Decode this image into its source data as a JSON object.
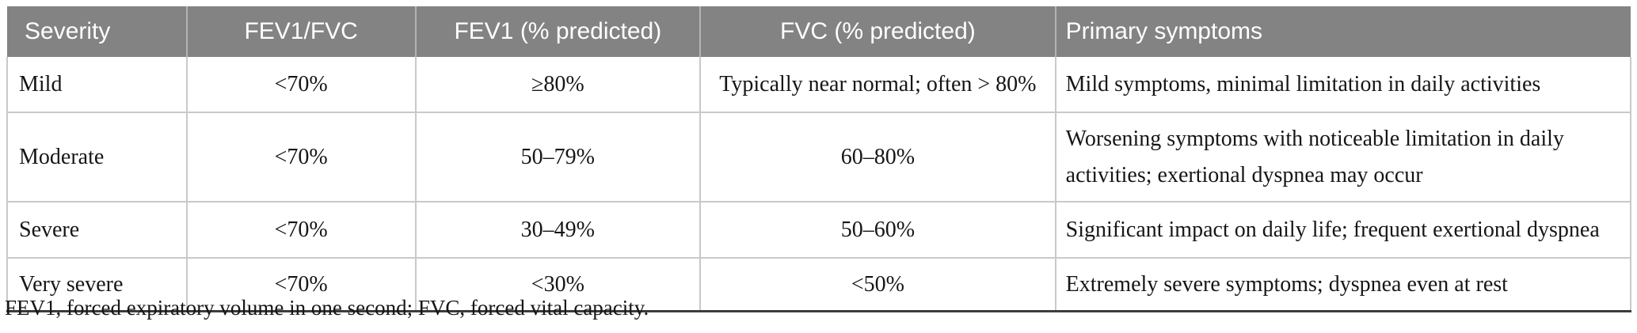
{
  "table": {
    "columns": [
      {
        "label": "Severity"
      },
      {
        "label": "FEV1/FVC"
      },
      {
        "label": "FEV1 (% predicted)"
      },
      {
        "label": "FVC (% predicted)"
      },
      {
        "label": "Primary symptoms"
      }
    ],
    "rows": [
      {
        "severity": "Mild",
        "fev1_fvc": "<70%",
        "fev1_predicted": "≥80%",
        "fvc_predicted": "Typically near normal; often > 80%",
        "symptoms": "Mild symptoms, minimal limitation in daily activities"
      },
      {
        "severity": "Moderate",
        "fev1_fvc": "<70%",
        "fev1_predicted": "50–79%",
        "fvc_predicted": "60–80%",
        "symptoms": "Worsening symptoms with noticeable limitation in daily activities; exertional dyspnea may occur"
      },
      {
        "severity": "Severe",
        "fev1_fvc": "<70%",
        "fev1_predicted": "30–49%",
        "fvc_predicted": "50–60%",
        "symptoms": "Significant impact on daily life; frequent exertional dyspnea"
      },
      {
        "severity": "Very severe",
        "fev1_fvc": "<70%",
        "fev1_predicted": "<30%",
        "fvc_predicted": "<50%",
        "symptoms": "Extremely severe symptoms; dyspnea even at rest"
      }
    ],
    "footnote": "FEV1, forced expiratory volume in one second; FVC, forced vital capacity."
  },
  "colors": {
    "header_bg": "#838383",
    "header_text": "#ffffff",
    "grid_line": "#c9c9c9",
    "header_separator": "#b3b3b3",
    "bottom_rule": "#3c3c3c",
    "body_text": "#161616"
  }
}
